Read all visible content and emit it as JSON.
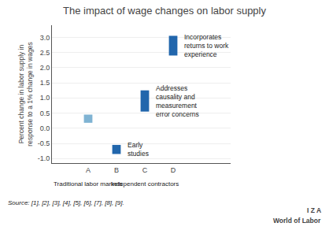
{
  "chart_data": {
    "type": "bar",
    "title": "The impact of wage changes on labor supply",
    "ylabel": "Percent change in labor supply in\nresponse to a 1% change in wages",
    "categories": [
      "A",
      "B",
      "C",
      "D"
    ],
    "bottoms": [
      0.18,
      -0.85,
      0.55,
      2.4
    ],
    "tops": [
      0.45,
      -0.55,
      1.25,
      3.05
    ],
    "colors": [
      "#7fb3d3",
      "#2166ac",
      "#2166ac",
      "#2166ac"
    ],
    "ylim": [
      -1.15,
      3.4
    ],
    "yticks": [
      {
        "value": -1.0,
        "label": "-1.0"
      },
      -0.5,
      {
        "value": 0.0,
        "label": "0.0"
      },
      0.5,
      {
        "value": 1.0,
        "label": "1.0"
      },
      1.5,
      {
        "value": 2.0,
        "label": "2.0"
      },
      2.5,
      {
        "value": 3.0,
        "label": "3.0"
      }
    ],
    "grid": true,
    "groups": [
      {
        "label": "Traditional labor markets",
        "category": "A"
      },
      {
        "label": "Independent contractors",
        "category": "C"
      }
    ],
    "annotations": [
      {
        "text": "Early\nstudies",
        "category": "B"
      },
      {
        "text": "Addresses\ncausality and\nmeasurement\nerror concerns",
        "category": "C"
      },
      {
        "text": "Incorporates\nreturns to work\nexperience",
        "category": "D"
      }
    ],
    "source": "Source: [1], [2], [3], [4], [5], [6], [7], [8], [9].",
    "credit": [
      "I Z A",
      "World of Labor"
    ]
  }
}
